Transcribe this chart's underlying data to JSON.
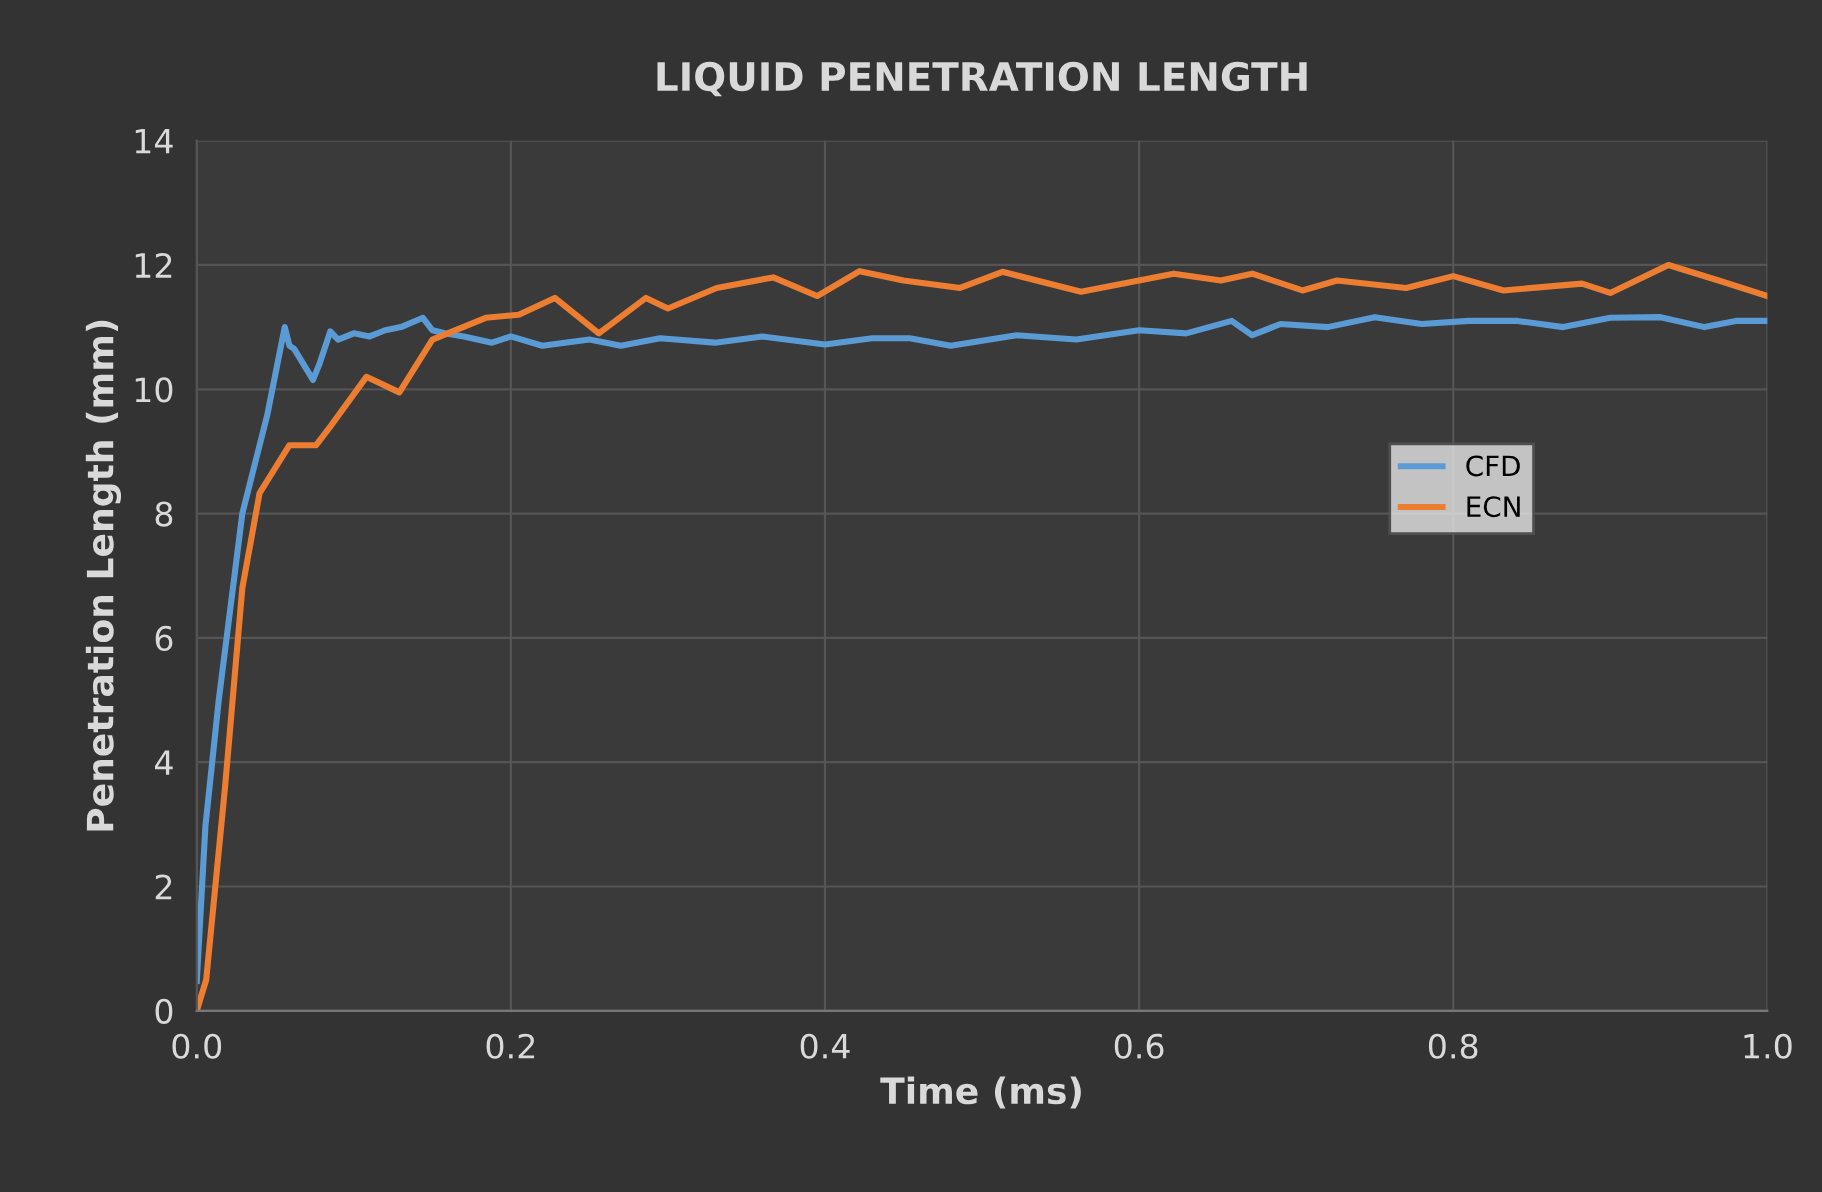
{
  "chart_data": {
    "type": "line",
    "title": "LIQUID PENETRATION LENGTH",
    "xlabel": "Time (ms)",
    "ylabel": "Penetration Length (mm)",
    "xlim": [
      0,
      1
    ],
    "ylim": [
      0,
      14
    ],
    "xticks": [
      {
        "value": 0,
        "label": "0.0"
      },
      0.2,
      0.4,
      0.6,
      0.8,
      {
        "value": 1,
        "label": "1.0"
      }
    ],
    "yticks": [
      0,
      2,
      4,
      6,
      8,
      10,
      12,
      14
    ],
    "grid": true,
    "legend": "right",
    "marker": "none",
    "line_style": "solid",
    "series": [
      {
        "name": "CFD",
        "color": "#5b9bd5",
        "x": [
          0.0,
          0.0055,
          0.014,
          0.029,
          0.045,
          0.056,
          0.059,
          0.062,
          0.068,
          0.074,
          0.078,
          0.085,
          0.09,
          0.1,
          0.11,
          0.12,
          0.13,
          0.144,
          0.15,
          0.158,
          0.17,
          0.188,
          0.2,
          0.22,
          0.25,
          0.27,
          0.295,
          0.33,
          0.36,
          0.4,
          0.43,
          0.454,
          0.48,
          0.522,
          0.56,
          0.6,
          0.63,
          0.659,
          0.672,
          0.69,
          0.72,
          0.75,
          0.78,
          0.81,
          0.841,
          0.87,
          0.9,
          0.932,
          0.96,
          0.98,
          1.0
        ],
        "values": [
          0.48,
          2.97,
          5.0,
          8.0,
          9.6,
          11.0,
          10.7,
          10.65,
          10.4,
          10.15,
          10.4,
          10.93,
          10.8,
          10.9,
          10.85,
          10.95,
          11.0,
          11.15,
          10.95,
          10.9,
          10.85,
          10.75,
          10.85,
          10.7,
          10.8,
          10.7,
          10.82,
          10.75,
          10.85,
          10.72,
          10.82,
          10.82,
          10.7,
          10.87,
          10.8,
          10.95,
          10.9,
          11.1,
          10.87,
          11.05,
          11.0,
          11.16,
          11.05,
          11.1,
          11.1,
          11.0,
          11.15,
          11.16,
          11.0,
          11.1,
          11.1
        ]
      },
      {
        "name": "ECN",
        "color": "#ed7d31",
        "x": [
          0.0,
          0.006,
          0.018,
          0.029,
          0.04,
          0.059,
          0.076,
          0.085,
          0.108,
          0.129,
          0.15,
          0.184,
          0.205,
          0.228,
          0.256,
          0.286,
          0.3,
          0.331,
          0.367,
          0.395,
          0.422,
          0.45,
          0.486,
          0.513,
          0.563,
          0.622,
          0.652,
          0.672,
          0.704,
          0.726,
          0.77,
          0.8,
          0.832,
          0.882,
          0.9,
          0.937,
          0.969,
          1.0
        ],
        "values": [
          0.0,
          0.5,
          3.6,
          6.8,
          8.33,
          9.1,
          9.1,
          9.4,
          10.2,
          9.95,
          10.8,
          11.15,
          11.2,
          11.47,
          10.9,
          11.47,
          11.3,
          11.63,
          11.8,
          11.5,
          11.9,
          11.75,
          11.63,
          11.89,
          11.57,
          11.86,
          11.75,
          11.86,
          11.59,
          11.75,
          11.63,
          11.82,
          11.59,
          11.7,
          11.55,
          12.0,
          11.75,
          11.5
        ]
      }
    ]
  }
}
